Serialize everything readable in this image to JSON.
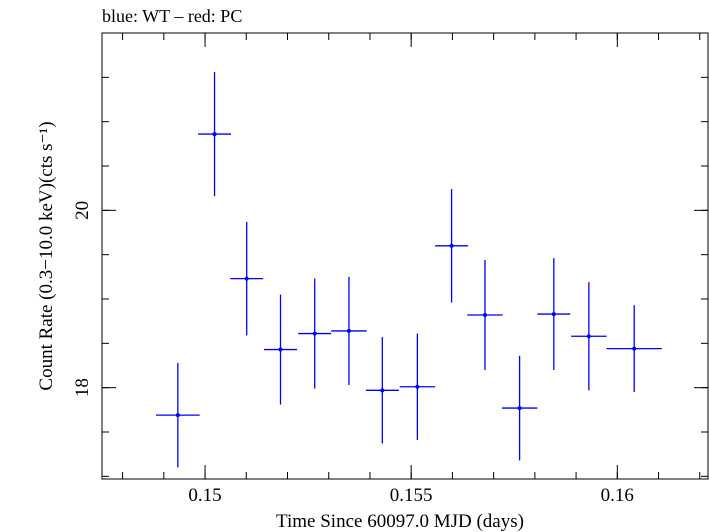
{
  "chart_data": {
    "type": "scatter",
    "title": "blue: WT – red: PC",
    "xlabel": "Time Since 60097.0 MJD (days)",
    "ylabel": "Count Rate (0.3−10.0 keV)(cts s⁻¹)",
    "xlim": [
      0.1475,
      0.1622
    ],
    "ylim": [
      16.97,
      22.0
    ],
    "x_ticks": [
      {
        "value": 0.15,
        "label": "0.15"
      },
      {
        "value": 0.155,
        "label": "0.155"
      },
      {
        "value": 0.16,
        "label": "0.16"
      }
    ],
    "y_ticks": [
      {
        "value": 18,
        "label": "18"
      },
      {
        "value": 20,
        "label": "20"
      }
    ],
    "x_minor_step": 0.001,
    "y_minor_step": 0.5,
    "grid": false,
    "series": [
      {
        "color": "#0000ff",
        "points": [
          {
            "x": 0.14934,
            "y": 17.69,
            "xerr": 0.00053,
            "yerr": 0.59
          },
          {
            "x": 0.15023,
            "y": 20.86,
            "xerr": 0.0004,
            "yerr": 0.7
          },
          {
            "x": 0.15101,
            "y": 19.23,
            "xerr": 0.0004,
            "yerr": 0.64
          },
          {
            "x": 0.15183,
            "y": 18.43,
            "xerr": 0.0004,
            "yerr": 0.62
          },
          {
            "x": 0.15266,
            "y": 18.61,
            "xerr": 0.0004,
            "yerr": 0.62
          },
          {
            "x": 0.15349,
            "y": 18.64,
            "xerr": 0.00043,
            "yerr": 0.61
          },
          {
            "x": 0.1543,
            "y": 17.97,
            "xerr": 0.0004,
            "yerr": 0.6
          },
          {
            "x": 0.15515,
            "y": 18.01,
            "xerr": 0.00043,
            "yerr": 0.6
          },
          {
            "x": 0.15598,
            "y": 19.6,
            "xerr": 0.0004,
            "yerr": 0.64
          },
          {
            "x": 0.15679,
            "y": 18.82,
            "xerr": 0.00043,
            "yerr": 0.62
          },
          {
            "x": 0.15763,
            "y": 17.77,
            "xerr": 0.00043,
            "yerr": 0.59
          },
          {
            "x": 0.15846,
            "y": 18.83,
            "xerr": 0.0004,
            "yerr": 0.63
          },
          {
            "x": 0.15931,
            "y": 18.58,
            "xerr": 0.00043,
            "yerr": 0.61
          },
          {
            "x": 0.16041,
            "y": 18.44,
            "xerr": 0.00067,
            "yerr": 0.49
          }
        ]
      }
    ]
  }
}
